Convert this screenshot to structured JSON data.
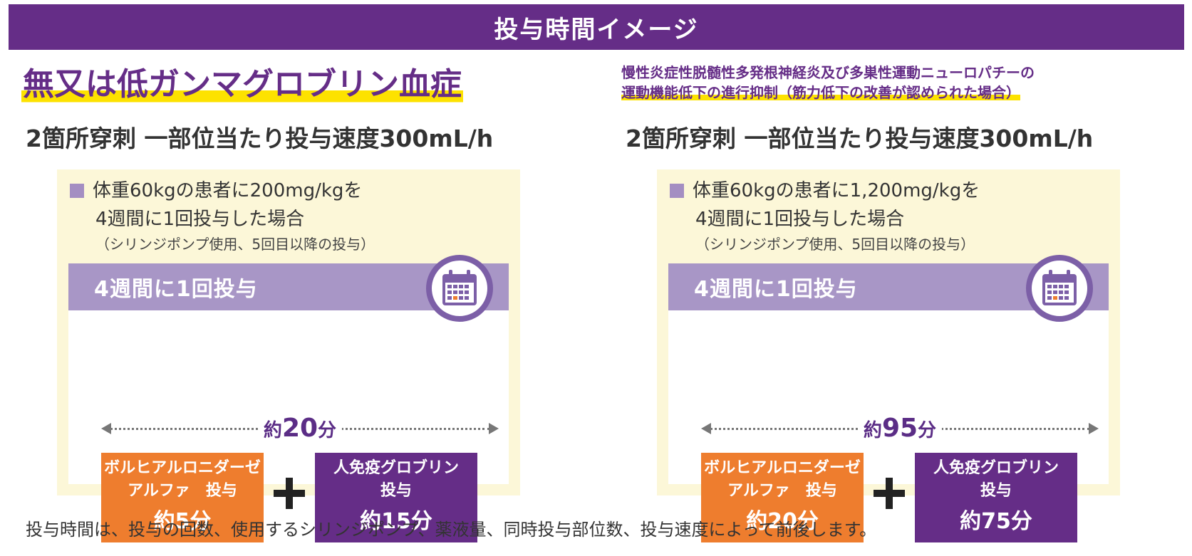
{
  "header": {
    "title": "投与時間イメージ"
  },
  "columns": [
    {
      "disease": "無又は低ガンマグロブリン血症",
      "disease_line2": "",
      "subtitle": "2箇所穿刺 一部位当たり投与速度300mL/h",
      "case_line1": "体重60kgの患者に200mg/kgを",
      "case_line2": "4週間に1回投与した場合",
      "case_note": "（シリンジポンプ使用、5回目以降の投与）",
      "band_label": "4週間に1回投与",
      "total_prefix": "約",
      "total_value": "20",
      "total_unit": "分",
      "orange_name1": "ボルヒアルロニダーゼ",
      "orange_name2": "アルファ　投与",
      "orange_time": "約5分",
      "purple_name1": "人免疫グロブリン",
      "purple_name2": "投与",
      "purple_time": "約15分"
    },
    {
      "disease": "慢性炎症性脱髄性多発根神経炎及び多巣性運動ニューロパチーの",
      "disease_line2": "運動機能低下の進行抑制（筋力低下の改善が認められた場合）",
      "subtitle": "2箇所穿刺 一部位当たり投与速度300mL/h",
      "case_line1": "体重60kgの患者に1,200mg/kgを",
      "case_line2": "4週間に1回投与した場合",
      "case_note": "（シリンジポンプ使用、5回目以降の投与）",
      "band_label": "4週間に1回投与",
      "total_prefix": "約",
      "total_value": "95",
      "total_unit": "分",
      "orange_name1": "ボルヒアルロニダーゼ",
      "orange_name2": "アルファ　投与",
      "orange_time": "約20分",
      "purple_name1": "人免疫グロブリン",
      "purple_name2": "投与",
      "purple_time": "約75分"
    }
  ],
  "icons": {
    "calendar": "calendar-icon",
    "plus": "plus-icon"
  },
  "colors": {
    "header": "#652d87",
    "highlight": "#fde200",
    "orange": "#ee7d2e",
    "purple": "#652d87",
    "band": "#a896c6",
    "panel": "#fcf7d8"
  },
  "footer": {
    "text": "投与時間は、投与の回数、使用するシリンジポンプ、薬液量、同時投与部位数、投与速度によって前後します。"
  }
}
